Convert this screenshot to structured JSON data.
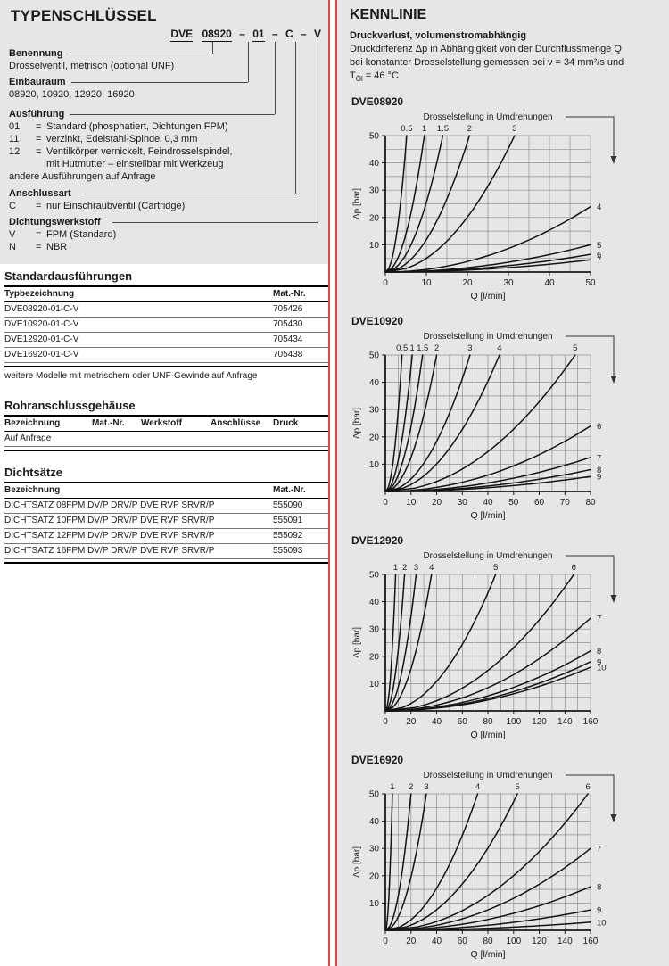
{
  "colors": {
    "panel_bg": "#e6e6e6",
    "accent_red": "#dd4840",
    "grid": "#8f8f8f",
    "axis": "#1a1a1a",
    "curve": "#141414",
    "leader": "#4a4a4a"
  },
  "typenschluessel": {
    "title": "TYPENSCHLÜSSEL",
    "code": {
      "parts": [
        {
          "t": "DVE"
        },
        {
          "t": "08920"
        },
        {
          "t": "01"
        },
        {
          "t": "C"
        },
        {
          "t": "V"
        }
      ],
      "dash": "–"
    },
    "eq": "=",
    "benennung": {
      "label": "Benennung",
      "desc": "Drosselventil, metrisch (optional UNF)"
    },
    "einbauraum": {
      "label": "Einbauraum",
      "desc": "08920, 10920, 12920, 16920"
    },
    "ausfuehrung": {
      "label": "Ausführung",
      "items": [
        {
          "code": "01",
          "text": "Standard (phosphatiert, Dichtungen FPM)"
        },
        {
          "code": "11",
          "text": "verzinkt, Edelstahl-Spindel 0,3 mm"
        },
        {
          "code": "12",
          "text": "Ventilkörper vernickelt, Feindrosselspindel,"
        },
        {
          "code": "",
          "text": "mit Hutmutter – einstellbar mit Werkzeug"
        }
      ],
      "note": "andere Ausführungen auf Anfrage"
    },
    "anschlussart": {
      "label": "Anschlussart",
      "items": [
        {
          "code": "C",
          "text": "nur Einschraubventil (Cartridge)"
        }
      ]
    },
    "dichtungswerkstoff": {
      "label": "Dichtungswerkstoff",
      "items": [
        {
          "code": "V",
          "text": "FPM (Standard)"
        },
        {
          "code": "N",
          "text": "NBR"
        }
      ]
    }
  },
  "tables": {
    "standard": {
      "title": "Standardausführungen",
      "col_headers": [
        "Typbezeichnung",
        "Mat.-Nr."
      ],
      "rows": [
        [
          "DVE08920-01-C-V",
          "705426"
        ],
        [
          "DVE10920-01-C-V",
          "705430"
        ],
        [
          "DVE12920-01-C-V",
          "705434"
        ],
        [
          "DVE16920-01-C-V",
          "705438"
        ]
      ],
      "note": "weitere Modelle mit metrischem oder UNF-Gewinde auf Anfrage"
    },
    "rohr": {
      "title": "Rohranschlussgehäuse",
      "col_headers": [
        "Bezeichnung",
        "Mat.-Nr.",
        "Werkstoff",
        "Anschlüsse",
        "Druck"
      ],
      "rows": [
        [
          "Auf Anfrage",
          "",
          "",
          "",
          ""
        ]
      ]
    },
    "dicht": {
      "title": "Dichtsätze",
      "col_headers": [
        "Bezeichnung",
        "Mat.-Nr."
      ],
      "rows": [
        [
          "DICHTSATZ 08FPM DV/P DRV/P DVE RVP SRVR/P",
          "555090"
        ],
        [
          "DICHTSATZ 10FPM DV/P DRV/P DVE RVP SRVR/P",
          "555091"
        ],
        [
          "DICHTSATZ 12FPM DV/P DRV/P DVE RVP SRVR/P",
          "555092"
        ],
        [
          "DICHTSATZ 16FPM DV/P DRV/P DVE RVP SRVR/P",
          "555093"
        ]
      ]
    }
  },
  "kennlinie": {
    "title": "KENNLINIE",
    "subtitle": "Druckverlust, volumenstromabhängig",
    "intro_line1": "Druckdifferenz Δp in Abhängigkeit von der Durchflussmenge Q",
    "intro_line2": "bei konstanter Drosselstellung gemessen bei ν = 34 mm²/s und",
    "temp": {
      "pre": "T",
      "sub": "Öl",
      "post": " = 46 °C"
    }
  },
  "chart_data": [
    {
      "type": "line",
      "title": "DVE08920",
      "top_axis_label": "Drosselstellung in Umdrehungen",
      "xlabel": "Q [l/min]",
      "ylabel": "Δp [bar]",
      "xlim": [
        0,
        50
      ],
      "ylim": [
        0,
        50
      ],
      "x_ticks": [
        0,
        10,
        20,
        30,
        40,
        50
      ],
      "y_ticks": [
        10,
        20,
        30,
        40,
        50
      ],
      "x_grid_step": 5,
      "y_grid_step": 5,
      "grid": true,
      "series": [
        {
          "label": "0.5",
          "q_at_50bar": 5.2
        },
        {
          "label": "1",
          "q_at_50bar": 9.5
        },
        {
          "label": "1.5",
          "q_at_50bar": 14
        },
        {
          "label": "2",
          "q_at_50bar": 20.5
        },
        {
          "label": "3",
          "q_at_50bar": 31.5
        },
        {
          "label": "4",
          "dp_at_xmax": 24
        },
        {
          "label": "5",
          "dp_at_xmax": 10
        },
        {
          "label": "6",
          "dp_at_xmax": 6.5
        },
        {
          "label": "7",
          "dp_at_xmax": 4.5
        }
      ]
    },
    {
      "type": "line",
      "title": "DVE10920",
      "top_axis_label": "Drosselstellung in Umdrehungen",
      "xlabel": "Q [l/min]",
      "ylabel": "Δp [bar]",
      "xlim": [
        0,
        80
      ],
      "ylim": [
        0,
        50
      ],
      "x_ticks": [
        0,
        10,
        20,
        30,
        40,
        50,
        60,
        70,
        80
      ],
      "y_ticks": [
        10,
        20,
        30,
        40,
        50
      ],
      "x_grid_step": 5,
      "y_grid_step": 5,
      "grid": true,
      "series": [
        {
          "label": "0.5",
          "q_at_50bar": 6.5
        },
        {
          "label": "1",
          "q_at_50bar": 10.5
        },
        {
          "label": "1.5",
          "q_at_50bar": 14.5
        },
        {
          "label": "2",
          "q_at_50bar": 20
        },
        {
          "label": "3",
          "q_at_50bar": 33
        },
        {
          "label": "4",
          "q_at_50bar": 44.5
        },
        {
          "label": "5",
          "q_at_50bar": 74
        },
        {
          "label": "6",
          "dp_at_xmax": 24
        },
        {
          "label": "7",
          "dp_at_xmax": 12.5
        },
        {
          "label": "8",
          "dp_at_xmax": 8
        },
        {
          "label": "9",
          "dp_at_xmax": 5.5
        }
      ]
    },
    {
      "type": "line",
      "title": "DVE12920",
      "top_axis_label": "Drosselstellung in Umdrehungen",
      "xlabel": "Q [l/min]",
      "ylabel": "Δp [bar]",
      "xlim": [
        0,
        160
      ],
      "ylim": [
        0,
        50
      ],
      "x_ticks": [
        0,
        20,
        40,
        60,
        80,
        100,
        120,
        140,
        160
      ],
      "y_ticks": [
        10,
        20,
        30,
        40,
        50
      ],
      "x_grid_step": 10,
      "y_grid_step": 5,
      "grid": true,
      "series": [
        {
          "label": "1",
          "q_at_50bar": 8
        },
        {
          "label": "2",
          "q_at_50bar": 15
        },
        {
          "label": "3",
          "q_at_50bar": 24
        },
        {
          "label": "4",
          "q_at_50bar": 36
        },
        {
          "label": "5",
          "q_at_50bar": 86
        },
        {
          "label": "6",
          "q_at_50bar": 147
        },
        {
          "label": "7",
          "dp_at_xmax": 34
        },
        {
          "label": "8",
          "dp_at_xmax": 22
        },
        {
          "label": "9",
          "dp_at_xmax": 18
        },
        {
          "label": "10",
          "dp_at_xmax": 16
        }
      ]
    },
    {
      "type": "line",
      "title": "DVE16920",
      "top_axis_label": "Drosselstellung in Umdrehungen",
      "xlabel": "Q [l/min]",
      "ylabel": "Δp [bar]",
      "xlim": [
        0,
        160
      ],
      "ylim": [
        0,
        50
      ],
      "x_ticks": [
        0,
        20,
        40,
        60,
        80,
        100,
        120,
        140,
        160
      ],
      "y_ticks": [
        10,
        20,
        30,
        40,
        50
      ],
      "x_grid_step": 10,
      "y_grid_step": 5,
      "grid": true,
      "series": [
        {
          "label": "1",
          "q_at_50bar": 5.5
        },
        {
          "label": "2",
          "q_at_50bar": 20
        },
        {
          "label": "3",
          "q_at_50bar": 32
        },
        {
          "label": "4",
          "q_at_50bar": 72
        },
        {
          "label": "5",
          "q_at_50bar": 103
        },
        {
          "label": "6",
          "q_at_50bar": 158
        },
        {
          "label": "7",
          "dp_at_xmax": 30
        },
        {
          "label": "8",
          "dp_at_xmax": 16
        },
        {
          "label": "9",
          "dp_at_xmax": 7.5
        },
        {
          "label": "10",
          "dp_at_xmax": 3
        }
      ]
    }
  ]
}
